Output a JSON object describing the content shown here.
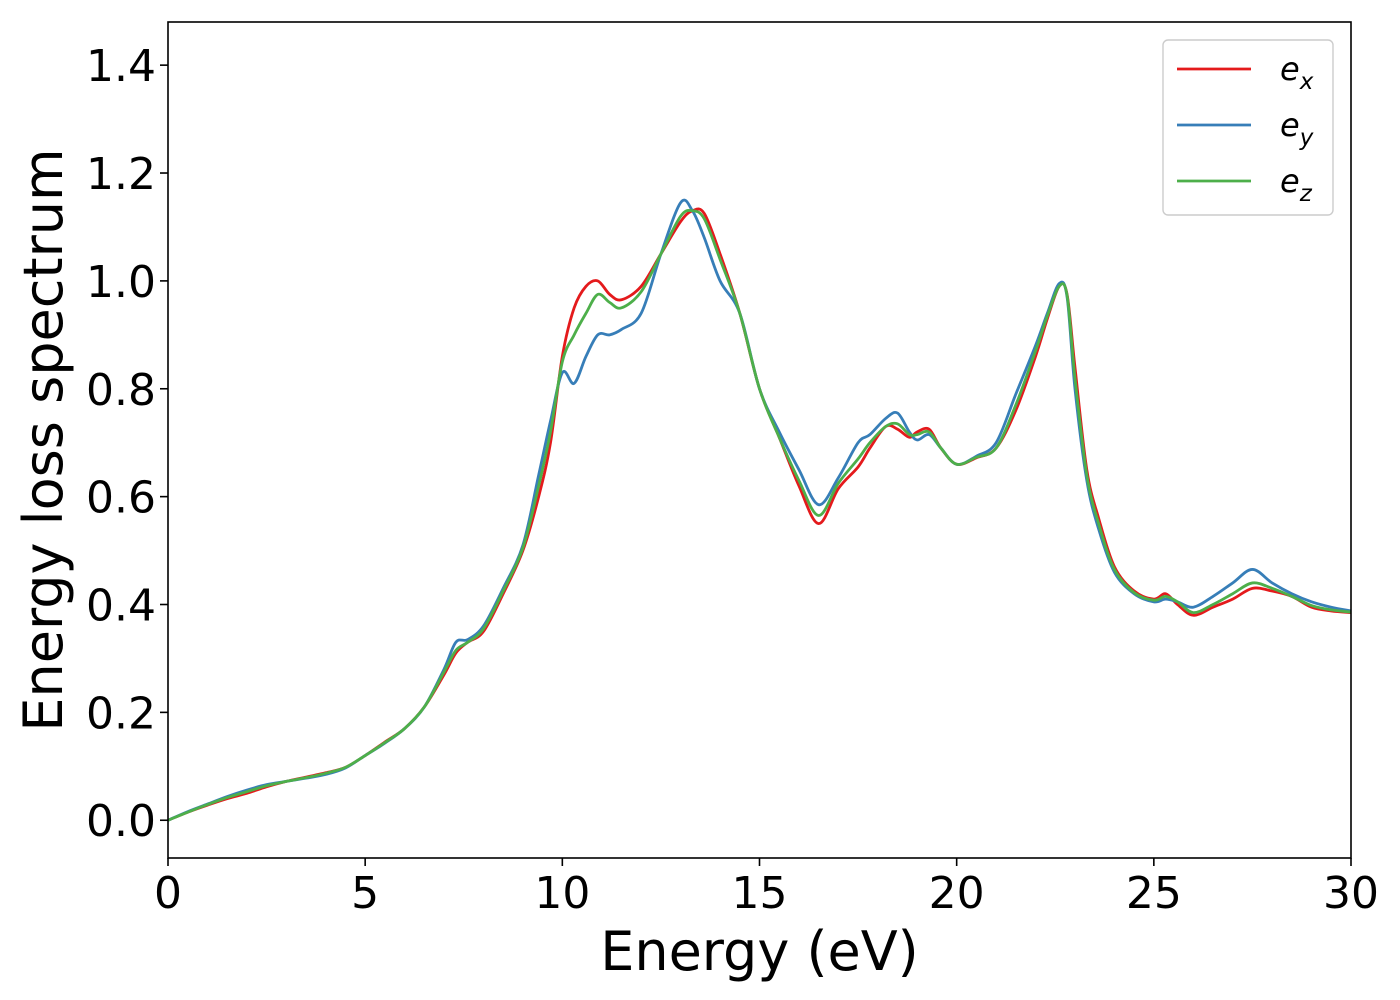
{
  "chart_data": {
    "type": "line",
    "title": "",
    "xlabel": "Energy (eV)",
    "ylabel": "Energy loss spectrum",
    "xlim": [
      0,
      30
    ],
    "ylim": [
      -0.07,
      1.48
    ],
    "xticks": [
      0,
      5,
      10,
      15,
      20,
      25,
      30
    ],
    "xtick_labels": [
      "0",
      "5",
      "10",
      "15",
      "20",
      "25",
      "30"
    ],
    "yticks": [
      0.0,
      0.2,
      0.4,
      0.6,
      0.8,
      1.0,
      1.2,
      1.4
    ],
    "ytick_labels": [
      "0.0",
      "0.2",
      "0.4",
      "0.6",
      "0.8",
      "1.0",
      "1.2",
      "1.4"
    ],
    "grid": false,
    "legend_position": "top-right",
    "series": [
      {
        "name": "e_x",
        "legend_base": "e",
        "legend_sub": "x",
        "color": "#e41a1c",
        "x": [
          0,
          0.5,
          1,
          1.5,
          2,
          2.5,
          3,
          3.5,
          4,
          4.5,
          5,
          5.5,
          6,
          6.5,
          7,
          7.3,
          7.6,
          8,
          8.5,
          9,
          9.4,
          9.7,
          10,
          10.3,
          10.6,
          10.9,
          11.2,
          11.5,
          12,
          12.5,
          13,
          13.3,
          13.6,
          14,
          14.5,
          15,
          15.5,
          16,
          16.5,
          17,
          17.5,
          17.8,
          18.2,
          18.5,
          18.8,
          19,
          19.3,
          19.6,
          20,
          20.5,
          21,
          21.5,
          22,
          22.3,
          22.6,
          22.8,
          23,
          23.3,
          23.6,
          24,
          24.5,
          25,
          25.3,
          25.6,
          26,
          26.5,
          27,
          27.5,
          28,
          28.5,
          29,
          29.5,
          30
        ],
        "y": [
          0.0,
          0.015,
          0.028,
          0.04,
          0.05,
          0.062,
          0.072,
          0.08,
          0.088,
          0.098,
          0.12,
          0.145,
          0.17,
          0.21,
          0.27,
          0.31,
          0.33,
          0.35,
          0.42,
          0.5,
          0.6,
          0.7,
          0.86,
          0.95,
          0.99,
          1.0,
          0.975,
          0.965,
          0.99,
          1.05,
          1.11,
          1.13,
          1.125,
          1.05,
          0.94,
          0.8,
          0.71,
          0.62,
          0.55,
          0.615,
          0.655,
          0.69,
          0.73,
          0.725,
          0.71,
          0.72,
          0.725,
          0.69,
          0.66,
          0.672,
          0.69,
          0.76,
          0.86,
          0.93,
          0.99,
          0.975,
          0.84,
          0.65,
          0.56,
          0.47,
          0.425,
          0.41,
          0.42,
          0.4,
          0.38,
          0.395,
          0.41,
          0.43,
          0.425,
          0.415,
          0.395,
          0.388,
          0.385
        ]
      },
      {
        "name": "e_y",
        "legend_base": "e",
        "legend_sub": "y",
        "color": "#377eb8",
        "x": [
          0,
          0.5,
          1,
          1.5,
          2,
          2.5,
          3,
          3.5,
          4,
          4.5,
          5,
          5.5,
          6,
          6.5,
          7,
          7.3,
          7.6,
          8,
          8.5,
          9,
          9.4,
          9.7,
          10,
          10.3,
          10.6,
          10.9,
          11.2,
          11.5,
          12,
          12.5,
          13,
          13.3,
          13.6,
          14,
          14.5,
          15,
          15.5,
          16,
          16.5,
          17,
          17.5,
          17.8,
          18.2,
          18.5,
          18.8,
          19,
          19.3,
          19.6,
          20,
          20.5,
          21,
          21.5,
          22,
          22.3,
          22.6,
          22.8,
          23,
          23.3,
          23.6,
          24,
          24.5,
          25,
          25.3,
          25.6,
          26,
          26.5,
          27,
          27.5,
          28,
          28.5,
          29,
          29.5,
          30
        ],
        "y": [
          0.0,
          0.016,
          0.03,
          0.044,
          0.056,
          0.066,
          0.072,
          0.078,
          0.085,
          0.097,
          0.12,
          0.143,
          0.17,
          0.21,
          0.28,
          0.33,
          0.335,
          0.36,
          0.43,
          0.51,
          0.64,
          0.74,
          0.83,
          0.81,
          0.86,
          0.9,
          0.9,
          0.91,
          0.94,
          1.05,
          1.145,
          1.13,
          1.08,
          1.0,
          0.94,
          0.8,
          0.72,
          0.65,
          0.585,
          0.635,
          0.7,
          0.715,
          0.745,
          0.755,
          0.72,
          0.705,
          0.715,
          0.69,
          0.66,
          0.675,
          0.7,
          0.79,
          0.88,
          0.94,
          0.995,
          0.97,
          0.8,
          0.63,
          0.54,
          0.46,
          0.42,
          0.405,
          0.41,
          0.405,
          0.395,
          0.415,
          0.44,
          0.465,
          0.44,
          0.42,
          0.405,
          0.395,
          0.388
        ]
      },
      {
        "name": "e_z",
        "legend_base": "e",
        "legend_sub": "z",
        "color": "#4daf4a",
        "x": [
          0,
          0.5,
          1,
          1.5,
          2,
          2.5,
          3,
          3.5,
          4,
          4.5,
          5,
          5.5,
          6,
          6.5,
          7,
          7.3,
          7.6,
          8,
          8.5,
          9,
          9.4,
          9.7,
          10,
          10.3,
          10.6,
          10.9,
          11.2,
          11.5,
          12,
          12.5,
          13,
          13.3,
          13.6,
          14,
          14.5,
          15,
          15.5,
          16,
          16.5,
          17,
          17.5,
          17.8,
          18.2,
          18.5,
          18.8,
          19,
          19.3,
          19.6,
          20,
          20.5,
          21,
          21.5,
          22,
          22.3,
          22.6,
          22.8,
          23,
          23.3,
          23.6,
          24,
          24.5,
          25,
          25.3,
          25.6,
          26,
          26.5,
          27,
          27.5,
          28,
          28.5,
          29,
          29.5,
          30
        ],
        "y": [
          0.0,
          0.015,
          0.029,
          0.042,
          0.053,
          0.064,
          0.072,
          0.079,
          0.087,
          0.098,
          0.12,
          0.144,
          0.17,
          0.21,
          0.275,
          0.315,
          0.33,
          0.355,
          0.425,
          0.505,
          0.62,
          0.72,
          0.85,
          0.9,
          0.94,
          0.975,
          0.96,
          0.95,
          0.98,
          1.05,
          1.12,
          1.13,
          1.115,
          1.04,
          0.94,
          0.8,
          0.71,
          0.63,
          0.565,
          0.625,
          0.67,
          0.7,
          0.73,
          0.735,
          0.715,
          0.715,
          0.72,
          0.69,
          0.66,
          0.673,
          0.69,
          0.77,
          0.87,
          0.935,
          0.99,
          0.973,
          0.82,
          0.64,
          0.55,
          0.465,
          0.422,
          0.408,
          0.415,
          0.405,
          0.385,
          0.4,
          0.42,
          0.44,
          0.43,
          0.415,
          0.398,
          0.39,
          0.386
        ]
      }
    ]
  }
}
